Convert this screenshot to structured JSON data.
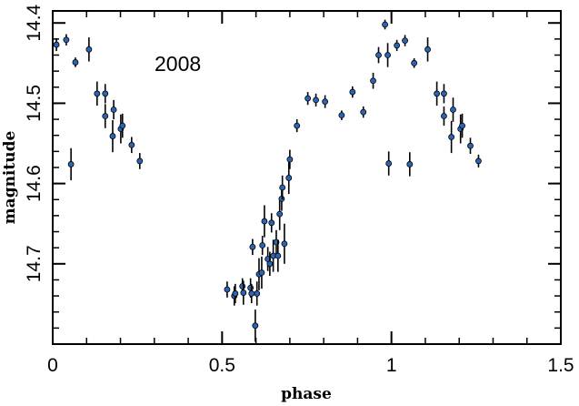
{
  "chart_data": {
    "type": "scatter",
    "xlabel": "phase",
    "ylabel": "magnitude",
    "annotation": "2008",
    "xlim": [
      0,
      1.5
    ],
    "ylim": [
      14.385,
      14.8
    ],
    "y_inverted": true,
    "xticks": [
      0,
      0.5,
      1,
      1.5
    ],
    "yticks": [
      14.4,
      14.5,
      14.6,
      14.7
    ],
    "x_minor_step": 0.1,
    "y_minor_step": 0.02,
    "series": [
      {
        "color": "#2a64b4",
        "errorbar_color": "#000000",
        "x": [
          0.011,
          0.04,
          0.067,
          0.054,
          0.107,
          0.131,
          0.155,
          0.155,
          0.18,
          0.177,
          0.201,
          0.206,
          0.233,
          0.257,
          0.515,
          0.536,
          0.539,
          0.56,
          0.563,
          0.584,
          0.587,
          0.59,
          0.598,
          0.603,
          0.609,
          0.617,
          0.619,
          0.625,
          0.635,
          0.641,
          0.646,
          0.651,
          0.66,
          0.665,
          0.67,
          0.676,
          0.678,
          0.684,
          0.697,
          0.7,
          0.721,
          0.753,
          0.777,
          0.804,
          0.853,
          0.885,
          0.917,
          0.946,
          0.962,
          0.981,
          0.989,
          0.992,
          1.016,
          1.04,
          1.054,
          1.067,
          1.107,
          1.134,
          1.155,
          1.155,
          1.182,
          1.177,
          1.204,
          1.209,
          1.233,
          1.257
        ],
        "values": [
          14.427,
          14.421,
          14.449,
          14.576,
          14.433,
          14.488,
          14.488,
          14.516,
          14.508,
          14.541,
          14.532,
          14.528,
          14.552,
          14.572,
          14.732,
          14.74,
          14.737,
          14.728,
          14.736,
          14.73,
          14.737,
          14.679,
          14.777,
          14.737,
          14.713,
          14.711,
          14.677,
          14.647,
          14.694,
          14.7,
          14.649,
          14.69,
          14.673,
          14.69,
          14.638,
          14.619,
          14.605,
          14.675,
          14.593,
          14.57,
          14.528,
          14.494,
          14.496,
          14.498,
          14.515,
          14.486,
          14.511,
          14.472,
          14.44,
          14.402,
          14.44,
          14.575,
          14.428,
          14.422,
          14.576,
          14.45,
          14.433,
          14.488,
          14.488,
          14.516,
          14.508,
          14.542,
          14.532,
          14.528,
          14.553,
          14.572
        ],
        "errors": [
          0.008,
          0.007,
          0.006,
          0.02,
          0.015,
          0.015,
          0.012,
          0.015,
          0.012,
          0.02,
          0.018,
          0.015,
          0.01,
          0.01,
          0.01,
          0.012,
          0.012,
          0.01,
          0.015,
          0.012,
          0.012,
          0.01,
          0.02,
          0.015,
          0.02,
          0.02,
          0.012,
          0.02,
          0.015,
          0.015,
          0.012,
          0.02,
          0.015,
          0.02,
          0.02,
          0.015,
          0.015,
          0.025,
          0.02,
          0.012,
          0.008,
          0.008,
          0.008,
          0.008,
          0.006,
          0.007,
          0.007,
          0.01,
          0.01,
          0.006,
          0.015,
          0.015,
          0.007,
          0.007,
          0.015,
          0.006,
          0.015,
          0.015,
          0.012,
          0.012,
          0.015,
          0.02,
          0.018,
          0.015,
          0.01,
          0.008
        ]
      }
    ]
  }
}
